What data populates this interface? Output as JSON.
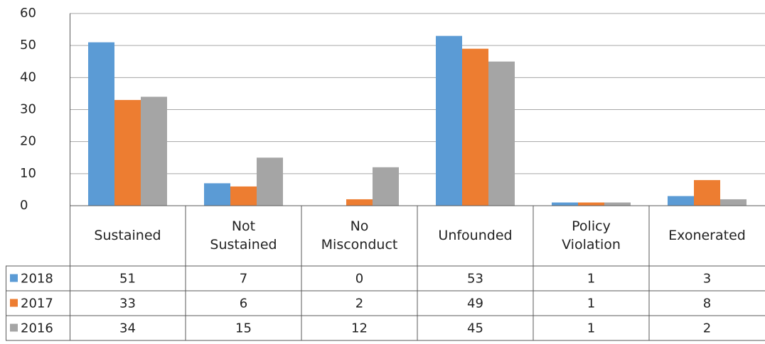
{
  "chart_data": {
    "type": "bar",
    "categories": [
      "Sustained",
      "Not Sustained",
      "No Misconduct",
      "Unfounded",
      "Policy Violation",
      "Exonerated"
    ],
    "series": [
      {
        "name": "2018",
        "color": "#5b9bd5",
        "values": [
          51,
          7,
          0,
          53,
          1,
          3
        ]
      },
      {
        "name": "2017",
        "color": "#ed7d31",
        "values": [
          33,
          6,
          2,
          49,
          1,
          8
        ]
      },
      {
        "name": "2016",
        "color": "#a5a5a5",
        "values": [
          34,
          15,
          12,
          45,
          1,
          2
        ]
      }
    ],
    "ylim": [
      0,
      60
    ],
    "yticks": [
      0,
      10,
      20,
      30,
      40,
      50,
      60
    ],
    "grid": true
  }
}
